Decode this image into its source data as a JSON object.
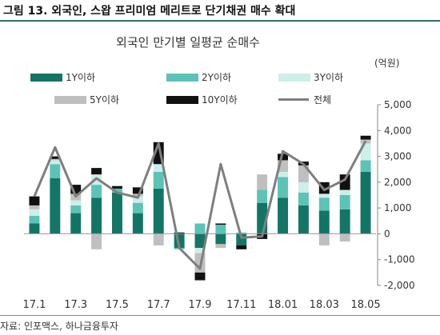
{
  "figure_title": "그림 13. 외국인, 스왑 프리미엄 메리트로 단기채권 매수 확대",
  "source": "자료: 인포맥스, 하나금융투자",
  "chart_data": {
    "type": "bar",
    "stacked": true,
    "title": "외국인 만기별 일평균 순매수",
    "unit": "(억원)",
    "ylim": [
      -2000,
      5000
    ],
    "yticks": [
      5000,
      4000,
      3000,
      2000,
      1000,
      0,
      -1000,
      -2000
    ],
    "ytick_labels": [
      "5,000",
      "4,000",
      "3,000",
      "2,000",
      "1,000",
      "0",
      "-1,000",
      "-2,000"
    ],
    "categories": [
      "17.1",
      "17.2",
      "17.3",
      "17.4",
      "17.5",
      "17.6",
      "17.7",
      "17.8",
      "17.9",
      "17.10",
      "17.11",
      "17.12",
      "18.01",
      "18.02",
      "18.03",
      "18.04",
      "18.05"
    ],
    "xtick_labels": [
      "17.1",
      "",
      "17.3",
      "",
      "17.5",
      "",
      "17.7",
      "",
      "17.9",
      "",
      "17.11",
      "",
      "18.01",
      "",
      "18.03",
      "",
      "18.05"
    ],
    "legend_position": "top",
    "series": [
      {
        "name": "1Y이하",
        "color": "#137565",
        "values": [
          400,
          2150,
          800,
          1400,
          1600,
          800,
          1750,
          -550,
          -550,
          -400,
          -450,
          1200,
          1400,
          1100,
          900,
          950,
          2400
        ]
      },
      {
        "name": "2Y이하",
        "color": "#5cc3b7",
        "values": [
          300,
          550,
          300,
          500,
          150,
          400,
          650,
          -50,
          400,
          350,
          50,
          500,
          800,
          500,
          500,
          550,
          450
        ]
      },
      {
        "name": "3Y이하",
        "color": "#cdeee9",
        "values": [
          250,
          150,
          200,
          400,
          0,
          250,
          300,
          0,
          -200,
          0,
          0,
          0,
          200,
          400,
          150,
          200,
          650
        ]
      },
      {
        "name": "5Y이하",
        "color": "#bfbfbf",
        "values": [
          150,
          50,
          250,
          -600,
          0,
          100,
          -450,
          0,
          -750,
          -150,
          0,
          600,
          450,
          650,
          -450,
          -300,
          150
        ]
      },
      {
        "name": "10Y이하",
        "color": "#111111",
        "values": [
          350,
          100,
          350,
          250,
          100,
          250,
          850,
          50,
          -300,
          50,
          -150,
          -200,
          250,
          150,
          450,
          600,
          150
        ]
      }
    ],
    "line": {
      "name": "전체",
      "color": "#7f7f7f",
      "values": [
        1450,
        3350,
        1450,
        2150,
        1600,
        1400,
        3500,
        -550,
        -1350,
        2700,
        -150,
        -100,
        3200,
        2700,
        1700,
        2100,
        3600
      ]
    }
  }
}
